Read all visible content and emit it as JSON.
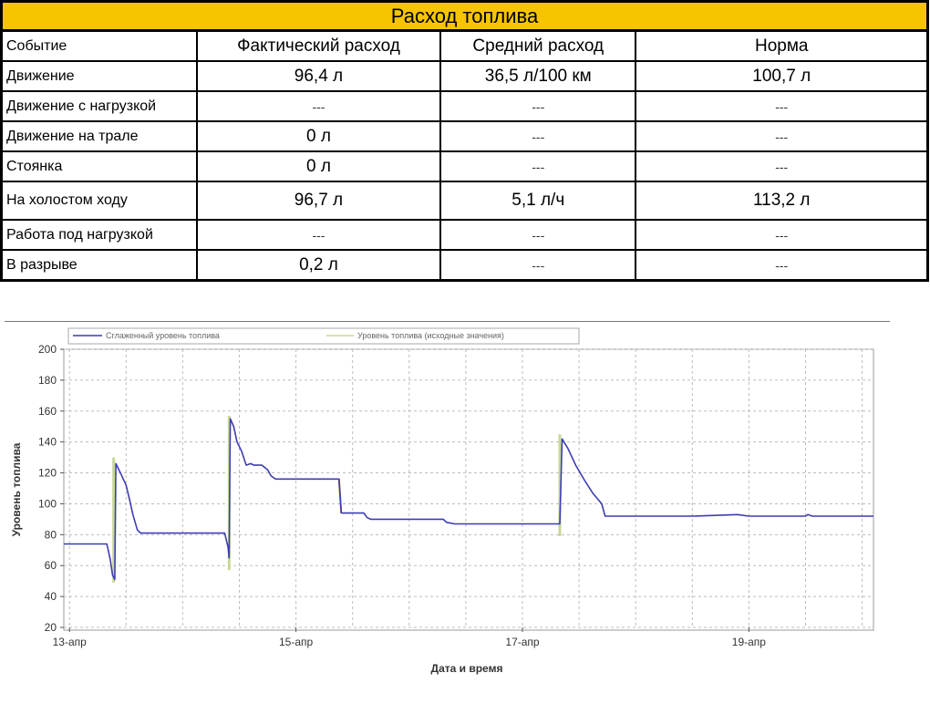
{
  "report": {
    "title": "Расход топлива",
    "headers": [
      "Событие",
      "Фактический расход",
      "Средний расход",
      "Норма"
    ],
    "rows": [
      {
        "event": "Движение",
        "actual": "96,4 л",
        "average": "36,5 л/100 км",
        "norm": "100,7 л"
      },
      {
        "event": "Движение с нагрузкой",
        "actual": "---",
        "average": "---",
        "norm": "---"
      },
      {
        "event": "Движение на трале",
        "actual": "0 л",
        "average": "---",
        "norm": "---"
      },
      {
        "event": "Стоянка",
        "actual": "0 л",
        "average": "---",
        "norm": "---"
      },
      {
        "event": "На холостом ходу",
        "actual": "96,7 л",
        "average": "5,1 л/ч",
        "norm": "113,2 л"
      },
      {
        "event": "Работа под нагрузкой",
        "actual": "---",
        "average": "---",
        "norm": "---"
      },
      {
        "event": "В разрыве",
        "actual": "0,2 л",
        "average": "---",
        "norm": "---"
      }
    ]
  },
  "chart_data": {
    "type": "line",
    "xlabel": "Дата и время",
    "ylabel": "Уровень топлива",
    "ylim": [
      20,
      200
    ],
    "yticks": [
      20,
      40,
      60,
      80,
      100,
      120,
      140,
      160,
      180,
      200
    ],
    "xlim": [
      12.95,
      20.1
    ],
    "xticks": [
      {
        "value": 13,
        "label": "13-апр"
      },
      {
        "value": 15,
        "label": "15-апр"
      },
      {
        "value": 17,
        "label": "17-апр"
      },
      {
        "value": 19,
        "label": "19-апр"
      }
    ],
    "grid": true,
    "legend_position": "top",
    "colors": {
      "smoothed": "#3c3cb4",
      "raw": "#c8d896",
      "gap": "#e06a3a",
      "grid": "#bdbdbd"
    },
    "series": [
      {
        "name": "Сглаженный уровень топлива",
        "points": [
          [
            12.95,
            74
          ],
          [
            13.33,
            74
          ],
          [
            13.36,
            64
          ],
          [
            13.38,
            54
          ],
          [
            13.4,
            51
          ],
          [
            13.41,
            126
          ],
          [
            13.45,
            120
          ],
          [
            13.5,
            112
          ],
          [
            13.53,
            103
          ],
          [
            13.56,
            93
          ],
          [
            13.6,
            83
          ],
          [
            13.63,
            81
          ],
          [
            13.7,
            81
          ],
          [
            14.1,
            81
          ],
          [
            14.37,
            81
          ],
          [
            14.4,
            72
          ],
          [
            14.41,
            65
          ],
          [
            14.42,
            155
          ],
          [
            14.45,
            150
          ],
          [
            14.48,
            140
          ],
          [
            14.52,
            134
          ],
          [
            14.56,
            125
          ],
          [
            14.6,
            126
          ],
          [
            14.63,
            125
          ],
          [
            14.7,
            125
          ],
          [
            14.75,
            122
          ],
          [
            14.78,
            118
          ],
          [
            14.82,
            116
          ],
          [
            15.0,
            116
          ],
          [
            15.38,
            116
          ],
          [
            15.4,
            94
          ],
          [
            15.5,
            94
          ],
          [
            15.6,
            94
          ],
          [
            15.63,
            91
          ],
          [
            15.66,
            90
          ],
          [
            15.8,
            90
          ],
          [
            16.2,
            90
          ],
          [
            16.3,
            90
          ],
          [
            16.33,
            88
          ],
          [
            16.4,
            87
          ],
          [
            16.8,
            87
          ],
          [
            17.3,
            87
          ],
          [
            17.33,
            87
          ],
          [
            17.35,
            142
          ],
          [
            17.4,
            136
          ],
          [
            17.47,
            125
          ],
          [
            17.55,
            115
          ],
          [
            17.62,
            107
          ],
          [
            17.7,
            100
          ],
          [
            17.73,
            92
          ],
          [
            17.8,
            92
          ],
          [
            18.0,
            92
          ],
          [
            18.5,
            92
          ],
          [
            18.9,
            93
          ],
          [
            19.0,
            92
          ],
          [
            19.5,
            92
          ],
          [
            19.52,
            93
          ],
          [
            19.56,
            92
          ],
          [
            20.1,
            92
          ]
        ]
      },
      {
        "name": "Уровень топлива (исходные значения)",
        "segments": [
          [
            [
              13.39,
              49
            ],
            [
              13.39,
              130
            ]
          ],
          [
            [
              14.41,
              57
            ],
            [
              14.41,
              157
            ]
          ],
          [
            [
              17.33,
              79
            ],
            [
              17.33,
              145
            ]
          ]
        ]
      }
    ],
    "gap_segments": [
      [
        [
          15.38,
          116
        ],
        [
          15.4,
          94
        ]
      ]
    ]
  }
}
